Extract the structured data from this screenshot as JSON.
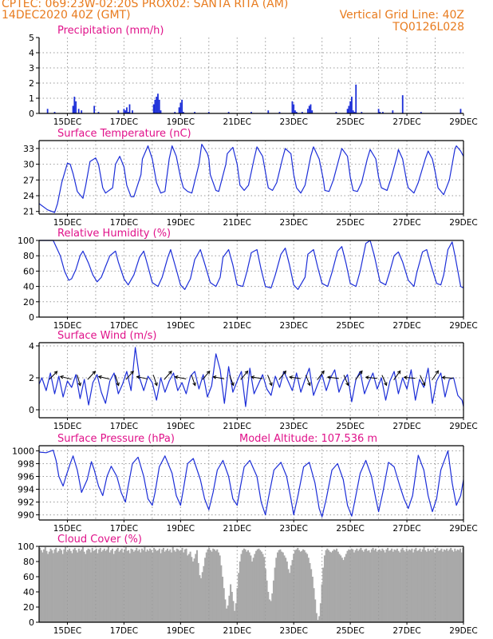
{
  "header": {
    "line1": "CPTEC:   069:23W-02:20S   PROX02: SANTA RITA (AM)",
    "line2_left": "14DEC2020 40Z (GMT)",
    "line2_right": "Vertical Grid Line: 40Z",
    "line3_right": "TQ0126L028"
  },
  "x_ticks": [
    "15DEC",
    "17DEC",
    "19DEC",
    "21DEC",
    "23DEC",
    "25DEC",
    "27DEC",
    "29DEC"
  ],
  "colors": {
    "header": "#e87b1e",
    "title": "#e0128a",
    "series": "#1c2ed8",
    "cloud": "#a9a9a9"
  },
  "chart_data": [
    {
      "type": "bar",
      "title": "Precipitation (mm/h)",
      "ylim": [
        0,
        5
      ],
      "yticks": [
        "0",
        "1",
        "2",
        "3",
        "4",
        "5"
      ],
      "x": [
        14.3,
        14.55,
        15.2,
        15.25,
        15.3,
        15.4,
        15.5,
        15.95,
        16.1,
        16.8,
        17.0,
        17.05,
        17.1,
        17.15,
        17.2,
        17.3,
        18.05,
        18.1,
        18.15,
        18.2,
        18.25,
        18.3,
        18.8,
        18.95,
        19.0,
        19.05,
        19.1,
        19.5,
        20.0,
        20.7,
        21.5,
        22.1,
        22.5,
        22.95,
        23.0,
        23.05,
        23.1,
        23.3,
        23.5,
        23.55,
        23.6,
        23.65,
        24.5,
        24.9,
        24.95,
        25.0,
        25.05,
        25.1,
        25.15,
        25.2,
        25.4,
        26.0,
        26.05,
        26.15,
        26.5,
        26.85,
        27.5,
        28.9
      ],
      "values": [
        0.3,
        0.1,
        0.5,
        1.1,
        0.8,
        0.3,
        0.2,
        0.5,
        0.1,
        0.2,
        0.3,
        0.2,
        0.4,
        0.1,
        0.6,
        0.2,
        0.6,
        0.9,
        1.1,
        1.3,
        0.9,
        0.2,
        0.1,
        0.4,
        0.7,
        0.9,
        0.1,
        0.1,
        0.1,
        0.1,
        0.1,
        0.2,
        0.1,
        0.8,
        0.6,
        0.2,
        0.1,
        0.1,
        0.3,
        0.5,
        0.6,
        0.2,
        0.1,
        0.3,
        0.5,
        0.8,
        1.1,
        0.2,
        0.1,
        1.9,
        0.1,
        0.3,
        0.1,
        0.1,
        0.2,
        1.2,
        0.1,
        0.3
      ]
    },
    {
      "type": "line",
      "title": "Surface Temperature (nC)",
      "ylim": [
        20.5,
        34.5
      ],
      "yticks": [
        "21",
        "24",
        "27",
        "30",
        "33"
      ],
      "x": [
        14.0,
        14.3,
        14.55,
        14.65,
        14.8,
        15.0,
        15.1,
        15.2,
        15.35,
        15.55,
        15.65,
        15.8,
        16.0,
        16.1,
        16.25,
        16.35,
        16.6,
        16.7,
        16.85,
        17.0,
        17.1,
        17.25,
        17.35,
        17.6,
        17.65,
        17.85,
        18.0,
        18.15,
        18.3,
        18.45,
        18.6,
        18.7,
        18.85,
        19.0,
        19.1,
        19.25,
        19.4,
        19.65,
        19.75,
        19.95,
        20.0,
        20.05,
        20.25,
        20.35,
        20.6,
        20.65,
        20.85,
        21.0,
        21.1,
        21.25,
        21.4,
        21.6,
        21.7,
        21.9,
        22.05,
        22.1,
        22.25,
        22.4,
        22.6,
        22.7,
        22.9,
        23.0,
        23.1,
        23.25,
        23.4,
        23.6,
        23.7,
        23.9,
        24.05,
        24.1,
        24.25,
        24.4,
        24.6,
        24.7,
        24.9,
        25.0,
        25.1,
        25.25,
        25.4,
        25.6,
        25.7,
        25.9,
        26.0,
        26.1,
        26.3,
        26.45,
        26.65,
        26.7,
        26.85,
        27.0,
        27.05,
        27.25,
        27.4,
        27.65,
        27.75,
        27.9,
        28.0,
        28.1,
        28.3,
        28.5,
        28.7,
        28.75,
        28.9,
        29.0
      ],
      "values": [
        22.5,
        21.3,
        20.8,
        22.5,
        26.5,
        30.2,
        30.0,
        28.2,
        24.8,
        23.5,
        26.0,
        30.5,
        31.2,
        30.0,
        25.5,
        24.5,
        25.5,
        30.0,
        31.5,
        29.5,
        26.0,
        23.8,
        23.8,
        28.0,
        31.0,
        33.5,
        31.0,
        26.5,
        24.5,
        24.8,
        31.0,
        33.5,
        31.5,
        27.5,
        25.5,
        24.8,
        24.5,
        30.0,
        33.8,
        32.0,
        31.0,
        28.0,
        25.0,
        24.8,
        30.0,
        32.0,
        33.2,
        30.0,
        26.0,
        25.0,
        26.0,
        31.0,
        33.3,
        31.5,
        27.0,
        25.5,
        25.0,
        26.5,
        31.0,
        33.0,
        32.0,
        28.0,
        25.5,
        24.5,
        26.0,
        31.5,
        33.3,
        31.0,
        27.0,
        25.0,
        24.8,
        27.0,
        31.0,
        33.0,
        31.5,
        27.5,
        25.0,
        24.8,
        26.5,
        31.0,
        32.8,
        31.0,
        27.5,
        25.5,
        25.0,
        27.5,
        31.5,
        32.8,
        31.0,
        26.5,
        25.5,
        24.5,
        26.5,
        31.0,
        32.5,
        31.0,
        28.5,
        25.5,
        24.2,
        27.0,
        33.0,
        33.5,
        32.5,
        31.5
      ]
    },
    {
      "type": "line",
      "title": "Relative Humidity (%)",
      "ylim": [
        0,
        100
      ],
      "yticks": [
        "0",
        "20",
        "40",
        "60",
        "80",
        "100"
      ],
      "x": [
        14.0,
        14.5,
        14.75,
        14.9,
        15.05,
        15.15,
        15.3,
        15.45,
        15.55,
        15.75,
        15.9,
        16.05,
        16.2,
        16.35,
        16.5,
        16.7,
        16.8,
        17.0,
        17.15,
        17.35,
        17.55,
        17.7,
        17.85,
        18.0,
        18.2,
        18.35,
        18.55,
        18.65,
        18.85,
        19.0,
        19.15,
        19.35,
        19.5,
        19.7,
        19.85,
        20.05,
        20.25,
        20.4,
        20.5,
        20.7,
        20.85,
        21.0,
        21.2,
        21.35,
        21.5,
        21.7,
        21.85,
        22.0,
        22.2,
        22.35,
        22.55,
        22.7,
        22.85,
        23.0,
        23.15,
        23.4,
        23.5,
        23.7,
        23.85,
        24.0,
        24.2,
        24.35,
        24.55,
        24.7,
        24.85,
        25.0,
        25.2,
        25.35,
        25.55,
        25.7,
        25.85,
        26.05,
        26.25,
        26.4,
        26.55,
        26.7,
        26.85,
        27.05,
        27.25,
        27.35,
        27.55,
        27.7,
        27.85,
        28.05,
        28.2,
        28.3,
        28.45,
        28.6,
        28.7,
        28.9,
        29.0
      ],
      "values": [
        100,
        100,
        80,
        60,
        48,
        50,
        62,
        80,
        86,
        70,
        55,
        46,
        52,
        66,
        80,
        86,
        72,
        50,
        42,
        55,
        78,
        86,
        66,
        45,
        40,
        52,
        78,
        88,
        62,
        42,
        36,
        50,
        75,
        88,
        70,
        45,
        40,
        52,
        78,
        88,
        68,
        42,
        40,
        60,
        84,
        88,
        62,
        40,
        38,
        55,
        82,
        90,
        68,
        42,
        36,
        52,
        82,
        88,
        65,
        44,
        40,
        58,
        86,
        92,
        70,
        44,
        40,
        60,
        96,
        100,
        80,
        46,
        42,
        60,
        80,
        85,
        72,
        48,
        40,
        58,
        85,
        88,
        68,
        44,
        42,
        55,
        88,
        98,
        80,
        40,
        38
      ]
    },
    {
      "type": "line",
      "title": "Surface Wind (m/s)",
      "ylim": [
        -0.5,
        4.2
      ],
      "yticks": [
        "0",
        "2",
        "4"
      ],
      "x": [
        14.0,
        14.1,
        14.25,
        14.4,
        14.55,
        14.7,
        14.85,
        15.0,
        15.15,
        15.3,
        15.45,
        15.6,
        15.75,
        15.9,
        16.05,
        16.2,
        16.35,
        16.5,
        16.65,
        16.8,
        16.95,
        17.1,
        17.25,
        17.4,
        17.55,
        17.7,
        17.85,
        18.0,
        18.15,
        18.3,
        18.45,
        18.6,
        18.75,
        18.9,
        19.05,
        19.2,
        19.35,
        19.5,
        19.65,
        19.8,
        19.95,
        20.1,
        20.25,
        20.4,
        20.55,
        20.7,
        20.85,
        21.0,
        21.15,
        21.3,
        21.45,
        21.6,
        21.75,
        21.9,
        22.05,
        22.2,
        22.35,
        22.5,
        22.65,
        22.8,
        22.95,
        23.1,
        23.25,
        23.4,
        23.55,
        23.7,
        23.85,
        24.0,
        24.15,
        24.3,
        24.45,
        24.6,
        24.75,
        24.9,
        25.05,
        25.2,
        25.35,
        25.5,
        25.65,
        25.8,
        25.95,
        26.1,
        26.25,
        26.4,
        26.55,
        26.7,
        26.85,
        27.0,
        27.15,
        27.3,
        27.45,
        27.6,
        27.75,
        27.9,
        28.05,
        28.2,
        28.35,
        28.5,
        28.65,
        28.8,
        28.95,
        29.0
      ],
      "values": [
        1.6,
        2.0,
        1.2,
        2.3,
        1.0,
        2.1,
        0.8,
        1.8,
        1.4,
        2.2,
        0.7,
        1.9,
        0.3,
        1.7,
        2.2,
        1.1,
        0.4,
        1.8,
        2.3,
        1.0,
        1.6,
        2.4,
        1.2,
        3.9,
        2.0,
        1.2,
        2.1,
        1.7,
        0.6,
        2.0,
        1.1,
        1.8,
        2.3,
        1.2,
        1.7,
        1.0,
        2.1,
        2.4,
        1.3,
        2.2,
        0.8,
        1.5,
        3.5,
        2.5,
        0.4,
        2.7,
        1.1,
        1.8,
        2.4,
        0.2,
        2.6,
        1.0,
        1.6,
        2.2,
        1.3,
        0.9,
        2.1,
        1.4,
        2.4,
        1.8,
        1.2,
        2.3,
        1.1,
        1.9,
        2.6,
        0.9,
        1.6,
        2.2,
        1.2,
        2.0,
        2.5,
        1.1,
        1.8,
        2.2,
        0.5,
        1.9,
        2.4,
        1.0,
        1.7,
        2.3,
        1.3,
        2.0,
        0.6,
        1.8,
        2.4,
        1.0,
        2.0,
        1.3,
        2.5,
        0.6,
        1.9,
        1.4,
        2.6,
        0.4,
        1.8,
        2.3,
        0.8,
        1.9,
        2.0,
        0.9,
        0.6,
        0.2
      ]
    },
    {
      "type": "line",
      "title": "Surface Pressure (hPa)",
      "annotation": "Model Altitude: 107.536 m",
      "ylim": [
        989.2,
        1000.8
      ],
      "yticks": [
        "990",
        "992",
        "994",
        "996",
        "998",
        "1000"
      ],
      "x": [
        14.0,
        14.25,
        14.5,
        14.6,
        14.7,
        14.85,
        14.95,
        15.1,
        15.2,
        15.35,
        15.5,
        15.7,
        15.85,
        15.95,
        16.1,
        16.25,
        16.4,
        16.55,
        16.75,
        16.9,
        17.05,
        17.15,
        17.3,
        17.5,
        17.7,
        17.85,
        18.0,
        18.1,
        18.25,
        18.45,
        18.7,
        18.85,
        19.0,
        19.1,
        19.25,
        19.45,
        19.7,
        19.85,
        20.0,
        20.15,
        20.3,
        20.5,
        20.7,
        20.85,
        21.0,
        21.1,
        21.25,
        21.45,
        21.7,
        21.85,
        22.0,
        22.1,
        22.3,
        22.55,
        22.75,
        22.9,
        23.0,
        23.15,
        23.35,
        23.55,
        23.75,
        23.9,
        24.0,
        24.15,
        24.35,
        24.55,
        24.75,
        24.9,
        25.05,
        25.15,
        25.35,
        25.55,
        25.75,
        25.9,
        26.0,
        26.15,
        26.35,
        26.55,
        26.75,
        26.9,
        27.05,
        27.2,
        27.4,
        27.6,
        27.75,
        27.9,
        28.05,
        28.2,
        28.45,
        28.6,
        28.75,
        28.9,
        29.0
      ],
      "values": [
        999.8,
        999.7,
        1000.1,
        998.5,
        996.0,
        994.5,
        996.0,
        998.0,
        999.2,
        997.0,
        993.5,
        995.5,
        998.3,
        997.0,
        994.5,
        993.0,
        996.0,
        997.6,
        996.0,
        993.5,
        992.0,
        994.5,
        998.0,
        999.0,
        996.0,
        992.5,
        991.5,
        993.5,
        997.5,
        999.2,
        996.5,
        993.0,
        991.5,
        994.0,
        998.0,
        998.8,
        995.5,
        992.5,
        990.8,
        993.5,
        997.0,
        998.5,
        996.0,
        992.5,
        991.5,
        994.0,
        997.5,
        998.5,
        996.0,
        992.0,
        990.0,
        992.5,
        997.0,
        998.2,
        996.0,
        992.5,
        990.0,
        993.0,
        997.5,
        998.2,
        995.0,
        991.0,
        989.7,
        992.5,
        997.0,
        998.0,
        995.5,
        991.5,
        989.8,
        992.0,
        996.5,
        998.5,
        996.0,
        992.5,
        990.5,
        993.5,
        998.2,
        997.5,
        994.5,
        992.5,
        991.0,
        993.0,
        999.3,
        997.0,
        993.0,
        990.5,
        992.5,
        997.0,
        1000.0,
        995.0,
        991.5,
        993.0,
        995.5
      ]
    },
    {
      "type": "bar",
      "title": "Cloud Cover (%)",
      "ylim": [
        0,
        100
      ],
      "yticks": [
        "0",
        "20",
        "40",
        "60",
        "80",
        "100"
      ],
      "values": [
        98,
        95,
        92,
        96,
        99,
        94,
        90,
        93,
        97,
        95,
        91,
        96,
        98,
        92,
        94,
        97,
        95,
        90,
        96,
        99,
        93,
        95,
        97,
        94,
        91,
        96,
        98,
        95,
        92,
        97,
        94,
        96,
        99,
        93,
        90,
        95,
        97,
        96,
        92,
        98,
        94,
        95,
        97,
        91,
        96,
        98,
        93,
        95,
        97,
        94,
        96,
        99,
        92,
        95,
        97,
        90,
        94,
        96,
        98,
        93,
        95,
        97,
        92,
        96,
        99,
        94,
        95,
        91,
        97,
        96,
        93,
        95,
        98,
        94,
        96,
        92,
        97,
        95,
        99,
        93,
        96,
        94,
        97,
        95,
        92,
        98,
        96,
        94,
        95,
        97,
        91,
        96,
        98,
        93,
        95,
        97,
        94,
        96,
        92,
        99,
        95,
        93,
        97,
        96,
        94,
        95,
        98,
        92,
        96,
        97,
        88,
        90,
        93,
        86,
        80,
        84,
        90,
        95,
        78,
        62,
        58,
        66,
        74,
        85,
        92,
        96,
        98,
        95,
        93,
        97,
        96,
        94,
        96,
        92,
        88,
        75,
        60,
        45,
        30,
        18,
        22,
        35,
        50,
        40,
        28,
        15,
        25,
        45,
        65,
        80,
        90,
        95,
        97,
        96,
        93,
        95,
        92,
        88,
        80,
        85,
        90,
        94,
        96,
        97,
        95,
        93,
        90,
        86,
        70,
        55,
        40,
        30,
        28,
        38,
        55,
        72,
        85,
        92,
        95,
        96,
        93,
        92,
        88,
        85,
        80,
        70,
        65,
        75,
        82,
        90,
        95,
        96,
        98,
        95,
        93,
        94,
        96,
        95,
        92,
        90,
        85,
        78,
        70,
        60,
        45,
        30,
        12,
        3,
        8,
        25,
        50,
        72,
        88,
        95,
        97,
        95,
        93,
        92,
        94,
        96,
        95,
        97,
        93,
        90,
        88,
        85,
        82,
        86,
        90,
        94,
        96,
        95,
        97,
        96,
        92,
        95,
        97,
        94,
        96,
        98,
        95,
        93,
        96,
        97,
        94,
        95,
        92,
        96,
        98,
        95,
        97,
        93,
        95,
        96,
        94,
        97,
        95,
        92,
        96,
        98,
        94,
        95,
        97,
        93,
        96,
        95,
        97,
        94,
        92,
        96,
        98,
        95,
        93,
        97,
        94,
        96,
        95,
        97,
        92,
        96,
        98,
        94,
        95,
        97,
        93,
        96,
        99,
        95,
        93,
        97,
        94,
        96,
        95,
        97,
        92,
        96,
        98,
        94,
        95,
        97,
        93,
        96,
        95,
        97,
        94,
        96,
        98,
        95,
        93,
        97,
        94,
        96,
        95,
        97,
        92,
        98
      ]
    }
  ]
}
